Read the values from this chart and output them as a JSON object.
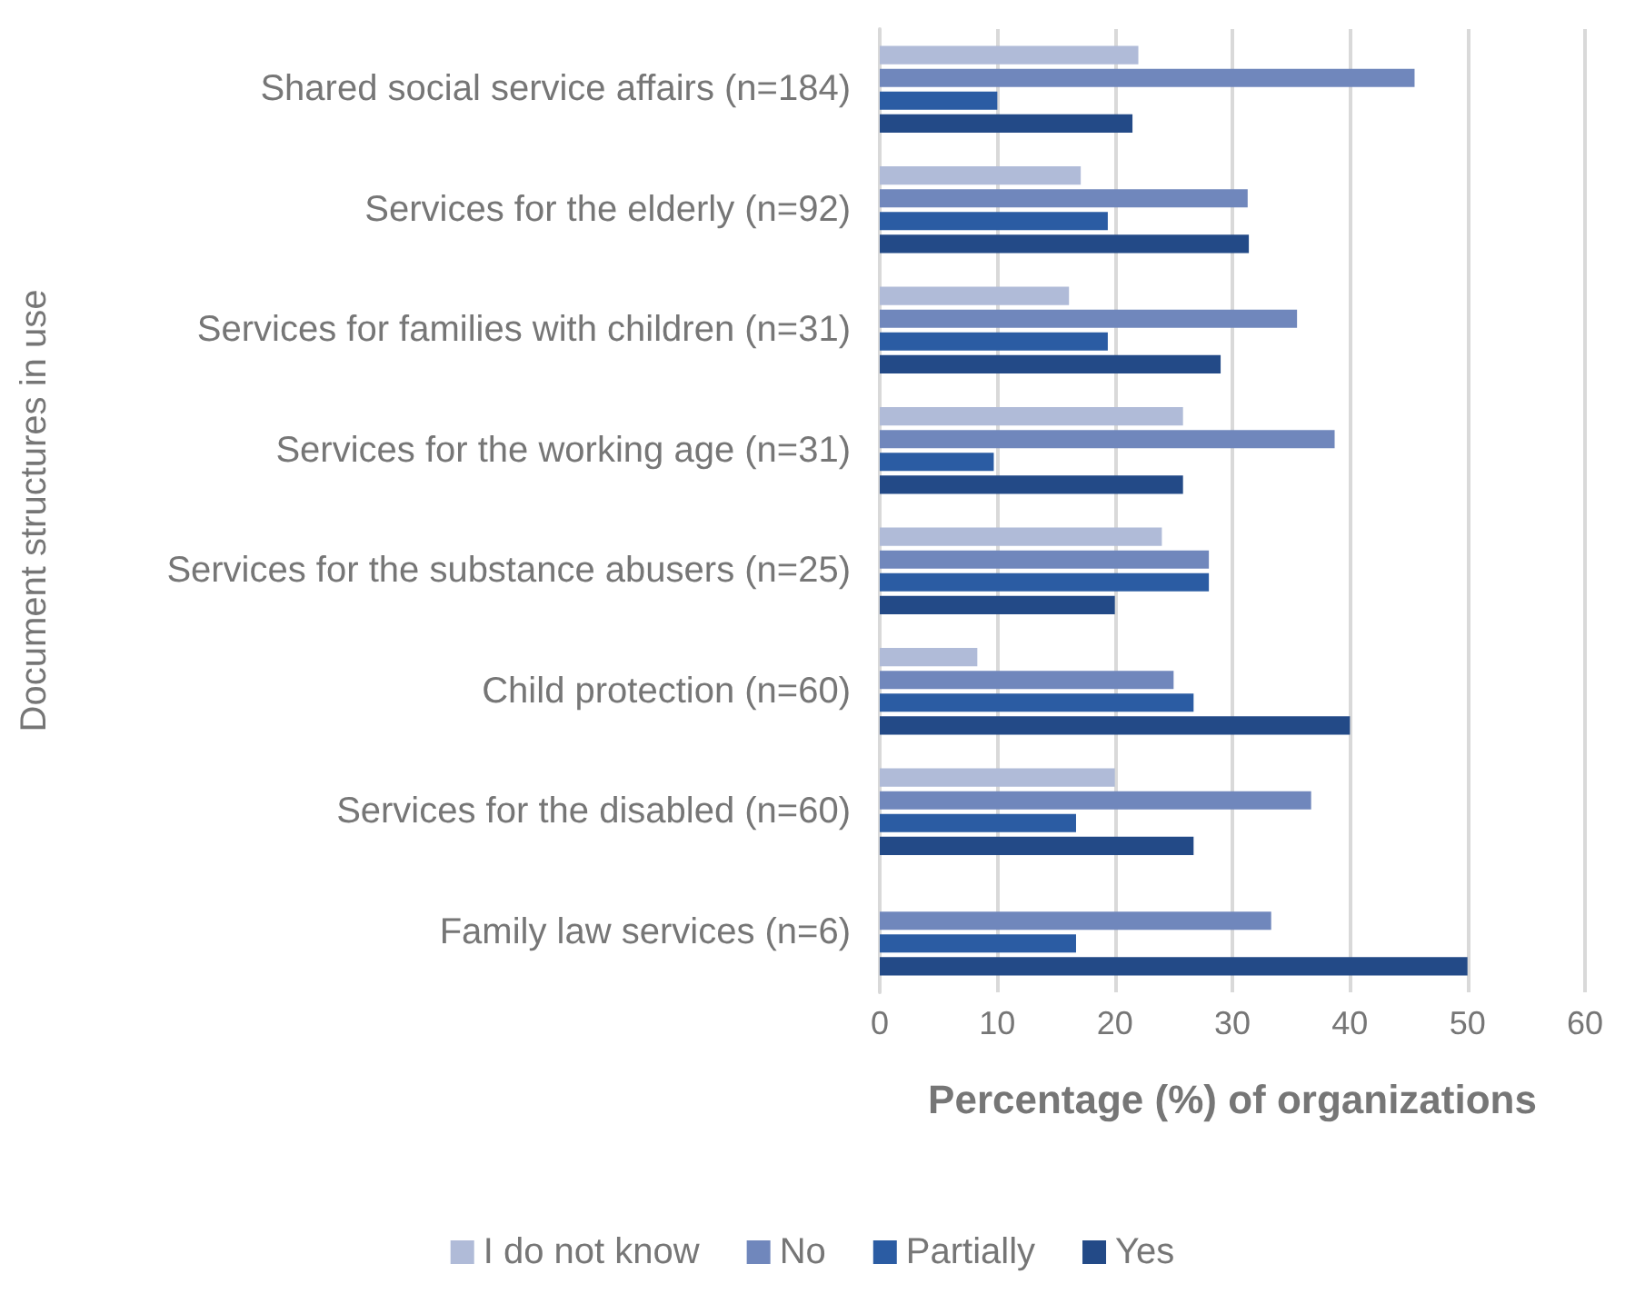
{
  "chart_data": {
    "type": "bar",
    "orientation": "horizontal",
    "xlabel": "Percentage (%) of organizations",
    "ylabel": "Document structures in use",
    "categories": [
      "Shared social service affairs (n=184)",
      "Services for the elderly (n=92)",
      "Services for families with children (n=31)",
      "Services for the working age (n=31)",
      "Services for the substance abusers (n=25)",
      "Child protection (n=60)",
      "Services for the disabled (n=60)",
      "Family law services (n=6)"
    ],
    "series": [
      {
        "name": "I do not know",
        "color": "#b0bbd8",
        "values": [
          22.0,
          17.1,
          16.1,
          25.8,
          24.0,
          8.3,
          20.0,
          0
        ]
      },
      {
        "name": "No",
        "color": "#7087bc",
        "values": [
          45.5,
          31.3,
          35.5,
          38.7,
          28.0,
          25.0,
          36.7,
          33.3
        ]
      },
      {
        "name": "Partially",
        "color": "#2b5ca3",
        "values": [
          10.0,
          19.4,
          19.4,
          9.7,
          28.0,
          26.7,
          16.7,
          16.7
        ]
      },
      {
        "name": "Yes",
        "color": "#234a87",
        "values": [
          21.5,
          31.4,
          29.0,
          25.8,
          20.0,
          40.0,
          26.7,
          50.0
        ]
      }
    ],
    "xlim": [
      0,
      60
    ],
    "xticks": [
      0,
      10,
      20,
      30,
      40,
      50,
      60
    ],
    "grid": "x",
    "legend": "bottom"
  }
}
